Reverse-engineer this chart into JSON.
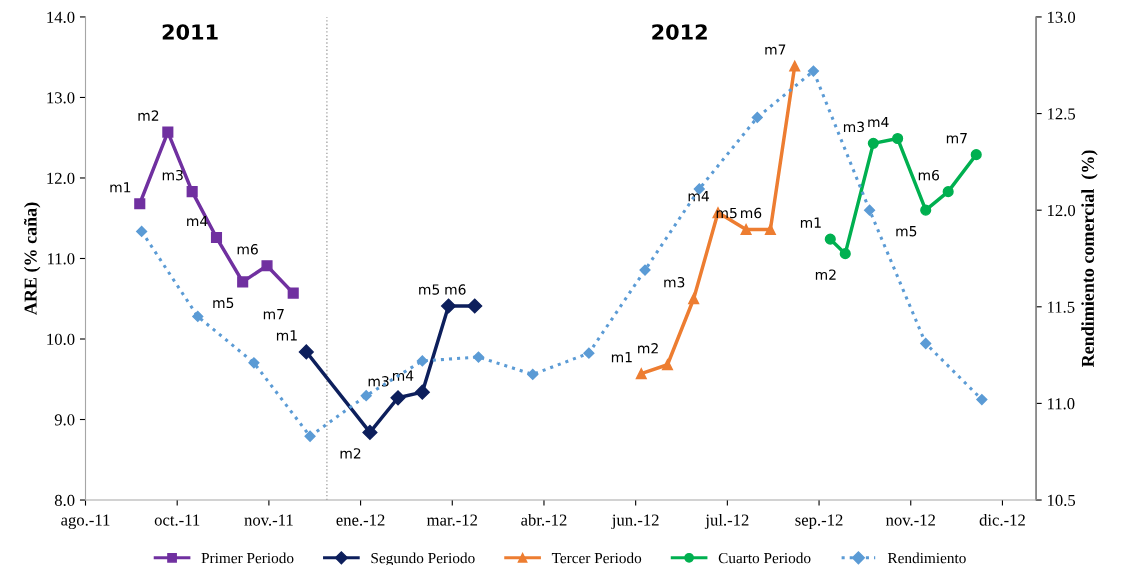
{
  "chart_data": {
    "type": "line",
    "annotations": [
      "2011",
      "2012"
    ],
    "ylabel": "ARE (% caña)",
    "y2label": "Rendimiento comercial  (%)",
    "xlim": [
      "2011-08-20",
      "2013-01-09"
    ],
    "xticks": [
      {
        "value": "2011-08-20",
        "label": "ago.-11"
      },
      {
        "value": "2011-10-08",
        "label": "oct.-11"
      },
      {
        "value": "2011-11-26",
        "label": "nov.-11"
      },
      {
        "value": "2012-01-14",
        "label": "ene.-12"
      },
      {
        "value": "2012-03-03",
        "label": "mar.-12"
      },
      {
        "value": "2012-04-21",
        "label": "abr.-12"
      },
      {
        "value": "2012-06-09",
        "label": "jun.-12"
      },
      {
        "value": "2012-07-28",
        "label": "jul.-12"
      },
      {
        "value": "2012-09-15",
        "label": "sep.-12"
      },
      {
        "value": "2012-11-03",
        "label": "nov.-12"
      },
      {
        "value": "2012-12-22",
        "label": "dic.-12"
      }
    ],
    "ylim": [
      8,
      14
    ],
    "yticks": [
      {
        "value": 8,
        "label": "8.0"
      },
      {
        "value": 9,
        "label": "9.0"
      },
      {
        "value": 10,
        "label": "10.0"
      },
      {
        "value": 11,
        "label": "11.0"
      },
      {
        "value": 12,
        "label": "12.0"
      },
      {
        "value": 13,
        "label": "13.0"
      },
      {
        "value": 14,
        "label": "14.0"
      }
    ],
    "y2lim": [
      10.5,
      13
    ],
    "y2ticks": [
      {
        "value": 10.5,
        "label": "10.5"
      },
      {
        "value": 11,
        "label": "11.0"
      },
      {
        "value": 11.5,
        "label": "11.5"
      },
      {
        "value": 12,
        "label": "12.0"
      },
      {
        "value": 12.5,
        "label": "12.5"
      },
      {
        "value": 13,
        "label": "13.0"
      }
    ],
    "ref_lines": [
      {
        "axis": "x",
        "value": "2011-12-27",
        "color": "#a6a6a6",
        "line_style": "dotted"
      }
    ],
    "grid": false,
    "legend": "bottom",
    "series": [
      {
        "name": "Primer Periodo",
        "color": "#7030a0",
        "marker": "square",
        "line_style": "solid",
        "x": [
          "2011-09-18",
          "2011-10-03",
          "2011-10-16",
          "2011-10-29",
          "2011-11-12",
          "2011-11-25",
          "2011-12-09"
        ],
        "values": [
          11.68,
          12.57,
          11.83,
          11.26,
          10.71,
          10.91,
          10.57
        ],
        "value_labels": [
          "m1",
          "m2",
          "m3",
          "m4",
          "m5",
          "m6",
          "m7"
        ]
      },
      {
        "name": "Segundo Periodo",
        "color": "#0d1f5c",
        "marker": "diamond",
        "line_style": "solid",
        "x": [
          "2011-12-16",
          "2012-01-19",
          "2012-02-03",
          "2012-02-16",
          "2012-03-01",
          "2012-03-15"
        ],
        "values": [
          9.84,
          8.84,
          9.27,
          9.34,
          10.41,
          10.41
        ],
        "value_labels": [
          "m1",
          "m2",
          "m3",
          "m4",
          "m5",
          "m6"
        ]
      },
      {
        "name": "Tercer Periodo",
        "color": "#ed7d31",
        "marker": "triangle",
        "line_style": "solid",
        "x": [
          "2012-06-12",
          "2012-06-26",
          "2012-07-10",
          "2012-07-23",
          "2012-08-07",
          "2012-08-20",
          "2012-09-02"
        ],
        "values": [
          9.57,
          9.68,
          10.5,
          11.57,
          11.36,
          11.36,
          13.39
        ],
        "value_labels": [
          "m1",
          "m2",
          "m3",
          "m4",
          "m5",
          "m6",
          "m7"
        ]
      },
      {
        "name": "Cuarto Periodo",
        "color": "#00b050",
        "marker": "circle",
        "line_style": "solid",
        "x": [
          "2012-09-21",
          "2012-09-29",
          "2012-10-14",
          "2012-10-27",
          "2012-11-11",
          "2012-11-23",
          "2012-12-08"
        ],
        "values": [
          11.24,
          11.06,
          12.43,
          12.49,
          11.6,
          11.83,
          12.29
        ],
        "value_labels": [
          "m1",
          "m2",
          "m3",
          "m4",
          "m5",
          "m6",
          "m7"
        ]
      },
      {
        "name": "Rendimiento",
        "color": "#5b9bd5",
        "marker": "diamond",
        "line_style": "dotted",
        "axis": "y2",
        "x": [
          "2011-09-19",
          "2011-10-19",
          "2011-11-18",
          "2011-12-18",
          "2012-01-17",
          "2012-02-16",
          "2012-03-17",
          "2012-04-15",
          "2012-05-15",
          "2012-06-14",
          "2012-07-13",
          "2012-08-13",
          "2012-09-12",
          "2012-10-12",
          "2012-11-11",
          "2012-12-11"
        ],
        "values": [
          11.89,
          11.45,
          11.21,
          10.83,
          11.04,
          11.22,
          11.24,
          11.15,
          11.26,
          11.69,
          12.11,
          12.48,
          12.72,
          12.0,
          11.31,
          11.02
        ]
      }
    ]
  }
}
